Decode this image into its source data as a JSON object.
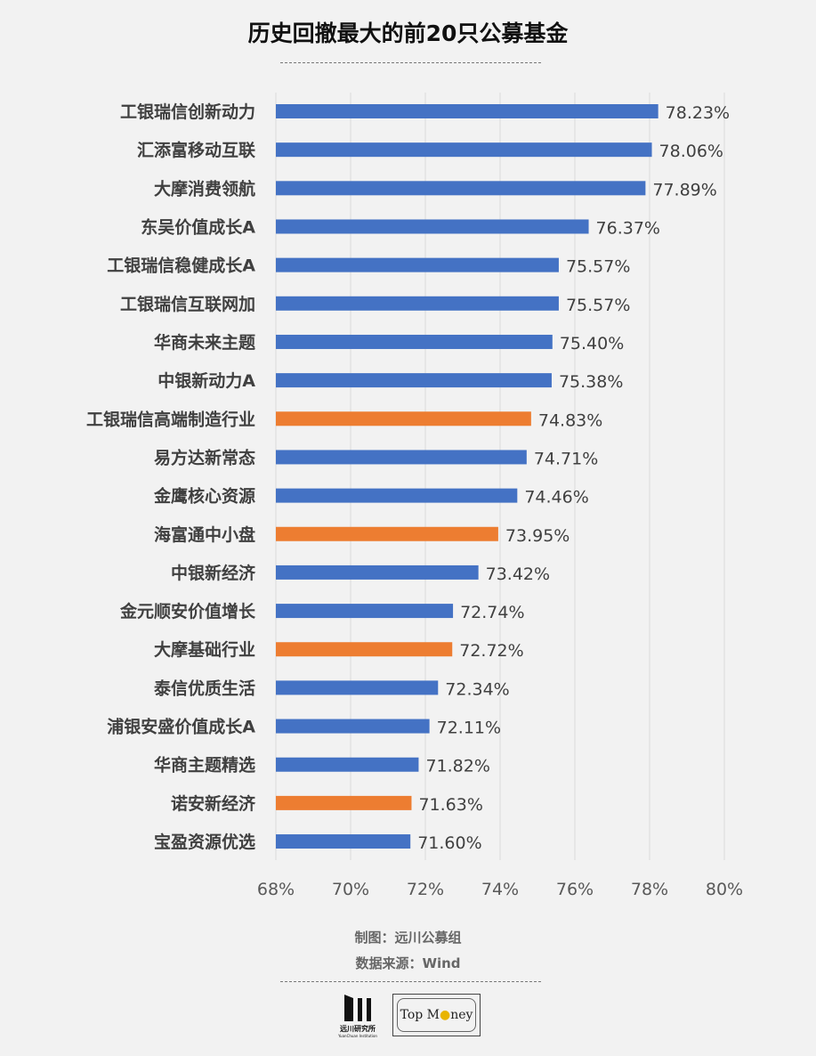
{
  "chart_data": {
    "type": "bar",
    "orientation": "horizontal",
    "title": "历史回撤最大的前20只公募基金",
    "categories": [
      "工银瑞信创新动力",
      "汇添富移动互联",
      "大摩消费领航",
      "东吴价值成长A",
      "工银瑞信稳健成长A",
      "工银瑞信互联网加",
      "华商未来主题",
      "中银新动力A",
      "工银瑞信高端制造行业",
      "易方达新常态",
      "金鹰核心资源",
      "海富通中小盘",
      "中银新经济",
      "金元顺安价值增长",
      "大摩基础行业",
      "泰信优质生活",
      "浦银安盛价值成长A",
      "华商主题精选",
      "诺安新经济",
      "宝盈资源优选"
    ],
    "values": [
      78.23,
      78.06,
      77.89,
      76.37,
      75.57,
      75.57,
      75.4,
      75.38,
      74.83,
      74.71,
      74.46,
      73.95,
      73.42,
      72.74,
      72.72,
      72.34,
      72.11,
      71.82,
      71.63,
      71.6
    ],
    "data_labels": [
      "78.23%",
      "78.06%",
      "77.89%",
      "76.37%",
      "75.57%",
      "75.57%",
      "75.40%",
      "75.38%",
      "74.83%",
      "74.71%",
      "74.46%",
      "73.95%",
      "73.42%",
      "72.74%",
      "72.72%",
      "72.34%",
      "72.11%",
      "71.82%",
      "71.63%",
      "71.60%"
    ],
    "highlighted": [
      false,
      false,
      false,
      false,
      false,
      false,
      false,
      false,
      true,
      false,
      false,
      true,
      false,
      false,
      true,
      false,
      false,
      false,
      true,
      false
    ],
    "xlim": [
      68,
      80
    ],
    "x_ticks": [
      "68%",
      "70%",
      "72%",
      "74%",
      "76%",
      "78%",
      "80%"
    ],
    "x_tick_values": [
      68,
      70,
      72,
      74,
      76,
      78,
      80
    ],
    "grid": "vertical",
    "colors": {
      "default": "#4472c4",
      "highlight": "#ed7d31"
    },
    "xlabel": "",
    "ylabel": ""
  },
  "footer": {
    "credit": "制图：远川公募组",
    "source": "数据来源：Wind"
  },
  "logos": {
    "yuanchuan": "远川研究所 YuanChuan Institution",
    "topmoney": "Top Money"
  }
}
